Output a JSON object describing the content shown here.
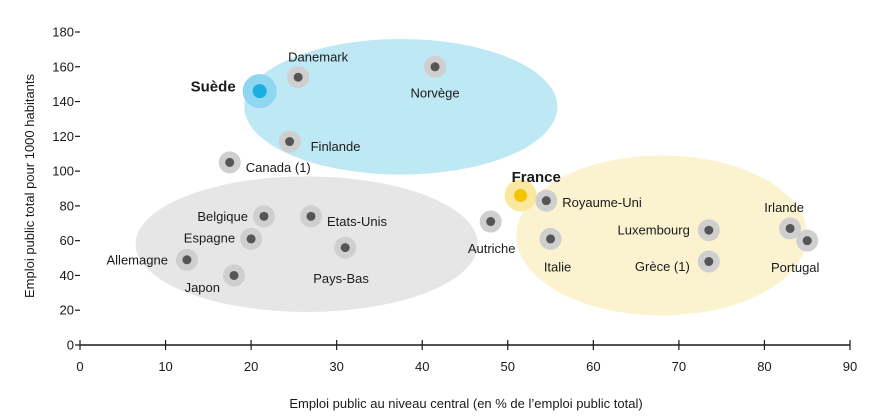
{
  "chart_data": {
    "type": "scatter",
    "title": "",
    "xlabel": "Emploi public au niveau central (en % de l’emploi public total)",
    "ylabel": "Emploi public total pour 1000 habitants",
    "xlim": [
      0,
      90
    ],
    "ylim": [
      0,
      180
    ],
    "x_ticks": [
      "0",
      "10",
      "20",
      "30",
      "40",
      "50",
      "60",
      "70",
      "80",
      "90"
    ],
    "y_ticks": [
      "0",
      "20",
      "40",
      "60",
      "80",
      "100",
      "120",
      "140",
      "160",
      "180"
    ],
    "grid": false,
    "colors": {
      "nordic_cluster": "#bfe8f5",
      "continental_cluster": "#e6e6e6",
      "central_cluster": "#fbf3cf",
      "point": "#555555",
      "point_halo": "#cfcfcf",
      "sweden": "#1aaee0",
      "sweden_halo": "#8fd6f0",
      "france": "#f5c400",
      "france_halo": "#fbe8a0"
    },
    "points": [
      {
        "label": "Danemark",
        "x": 25.5,
        "y": 154,
        "group": "nordic"
      },
      {
        "label": "Norvège",
        "x": 41.5,
        "y": 160,
        "group": "nordic"
      },
      {
        "label": "Suède",
        "x": 21,
        "y": 146,
        "group": "nordic",
        "highlight": "sweden"
      },
      {
        "label": "Finlande",
        "x": 24.5,
        "y": 117,
        "group": "nordic"
      },
      {
        "label": "Canada (1)",
        "x": 17.5,
        "y": 105,
        "group": "nordic"
      },
      {
        "label": "Belgique",
        "x": 21.5,
        "y": 74,
        "group": "continental"
      },
      {
        "label": "Etats-Unis",
        "x": 27,
        "y": 74,
        "group": "continental"
      },
      {
        "label": "Espagne",
        "x": 20,
        "y": 61,
        "group": "continental"
      },
      {
        "label": "Pays-Bas",
        "x": 31,
        "y": 56,
        "group": "continental"
      },
      {
        "label": "Allemagne",
        "x": 12.5,
        "y": 49,
        "group": "continental"
      },
      {
        "label": "Japon",
        "x": 18,
        "y": 40,
        "group": "continental"
      },
      {
        "label": "France",
        "x": 51.5,
        "y": 86,
        "group": "central",
        "highlight": "france"
      },
      {
        "label": "Royaume-Uni",
        "x": 54.5,
        "y": 83,
        "group": "central"
      },
      {
        "label": "Autriche",
        "x": 48,
        "y": 71,
        "group": "central"
      },
      {
        "label": "Italie",
        "x": 55,
        "y": 61,
        "group": "central"
      },
      {
        "label": "Luxembourg",
        "x": 73.5,
        "y": 66,
        "group": "central"
      },
      {
        "label": "Grèce (1)",
        "x": 73.5,
        "y": 48,
        "group": "central"
      },
      {
        "label": "Irlande",
        "x": 83,
        "y": 67,
        "group": "central"
      },
      {
        "label": "Portugal",
        "x": 85,
        "y": 60,
        "group": "central"
      }
    ],
    "clusters": [
      {
        "name": "nordic",
        "cx": 37.5,
        "cy": 137,
        "rx": 18.3,
        "ry": 39
      },
      {
        "name": "continental",
        "cx": 26.5,
        "cy": 58,
        "rx": 20,
        "ry": 39
      },
      {
        "name": "central",
        "cx": 68,
        "cy": 63,
        "rx": 17,
        "ry": 46
      }
    ]
  }
}
